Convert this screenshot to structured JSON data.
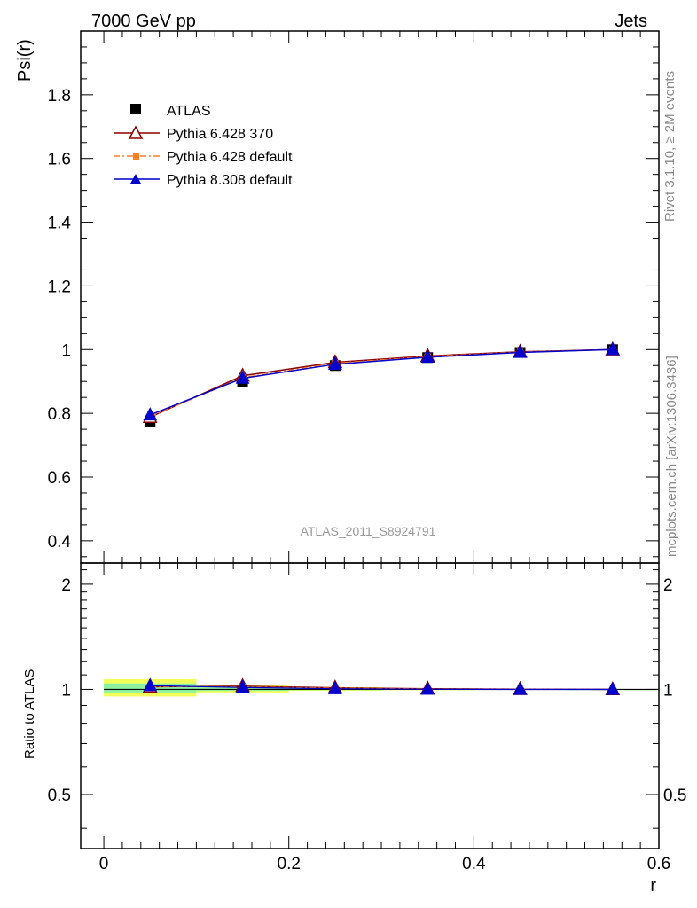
{
  "header": {
    "left": "7000 GeV pp",
    "right": "Jets"
  },
  "side_labels": {
    "rivet": "Rivet 3.1.10, ≥ 2M events",
    "source": "mcplots.cern.ch [arXiv:1306.3436]"
  },
  "watermark": "ATLAS_2011_S8924791",
  "colors": {
    "atlas": "#000000",
    "pythia6_370": "#8b0000",
    "pythia6_default": "#ff7f27",
    "pythia8_default": "#0000cc",
    "band_inner": "#f2ff5a",
    "band_outer": "#8cf2a0"
  },
  "chart_data": [
    {
      "type": "line",
      "ylabel": "Psi(r)",
      "xlim": [
        -0.025,
        0.6
      ],
      "ylim": [
        0.33,
        2.0
      ],
      "yticks": [
        0.4,
        0.6,
        0.8,
        1.0,
        1.2,
        1.4,
        1.6,
        1.8
      ],
      "ytick_labels": [
        "0.4",
        "0.6",
        "0.8",
        "1",
        "1.2",
        "1.4",
        "1.6",
        "1.8"
      ],
      "x": [
        0.05,
        0.15,
        0.25,
        0.35,
        0.45,
        0.55
      ],
      "legend_position": "top-left",
      "series": [
        {
          "name": "ATLAS",
          "marker": "square",
          "values": [
            0.775,
            0.898,
            0.95,
            0.975,
            0.991,
            1.0
          ]
        },
        {
          "name": "Pythia 6.428 370",
          "marker": "open-triangle",
          "values": [
            0.788,
            0.918,
            0.96,
            0.98,
            0.993,
            1.0
          ]
        },
        {
          "name": "Pythia 6.428 default",
          "marker": "small-square",
          "values": [
            0.79,
            0.912,
            0.957,
            0.978,
            0.992,
            1.0
          ]
        },
        {
          "name": "Pythia 8.308 default",
          "marker": "triangle",
          "values": [
            0.795,
            0.91,
            0.954,
            0.976,
            0.991,
            1.0
          ]
        }
      ]
    },
    {
      "type": "line",
      "ylabel": "Ratio to ATLAS",
      "xlabel": "r",
      "xlim": [
        -0.025,
        0.6
      ],
      "ylim": [
        0.35,
        2.3
      ],
      "yticks": [
        0.5,
        1.0,
        2.0
      ],
      "ytick_labels": [
        "0.5",
        "1",
        "2"
      ],
      "xticks": [
        0.0,
        0.2,
        0.4,
        0.6
      ],
      "xtick_labels": [
        "0",
        "0.2",
        "0.4",
        "0.6"
      ],
      "x": [
        0.05,
        0.15,
        0.25,
        0.35,
        0.45,
        0.55
      ],
      "bands": [
        {
          "x_low": 0.0,
          "x_high": 0.1,
          "inner": [
            0.98,
            1.04
          ],
          "outer": [
            0.955,
            1.07
          ]
        },
        {
          "x_low": 0.1,
          "x_high": 0.2,
          "inner": [
            0.99,
            1.02
          ],
          "outer": [
            0.98,
            1.03
          ]
        },
        {
          "x_low": 0.2,
          "x_high": 0.3,
          "inner": [
            0.995,
            1.01
          ],
          "outer": [
            0.99,
            1.015
          ]
        },
        {
          "x_low": 0.3,
          "x_high": 0.4,
          "inner": [
            0.997,
            1.006
          ],
          "outer": [
            0.994,
            1.009
          ]
        },
        {
          "x_low": 0.4,
          "x_high": 0.5,
          "inner": [
            0.998,
            1.003
          ],
          "outer": [
            0.996,
            1.005
          ]
        },
        {
          "x_low": 0.5,
          "x_high": 0.6,
          "inner": [
            0.999,
            1.001
          ],
          "outer": [
            0.998,
            1.002
          ]
        }
      ],
      "series": [
        {
          "name": "Pythia 6.428 370",
          "values": [
            1.017,
            1.022,
            1.011,
            1.005,
            1.002,
            1.0
          ]
        },
        {
          "name": "Pythia 6.428 default",
          "values": [
            1.02,
            1.016,
            1.008,
            1.003,
            1.001,
            1.0
          ]
        },
        {
          "name": "Pythia 8.308 default",
          "values": [
            1.025,
            1.013,
            1.004,
            1.001,
            1.0,
            1.0
          ]
        }
      ]
    }
  ]
}
